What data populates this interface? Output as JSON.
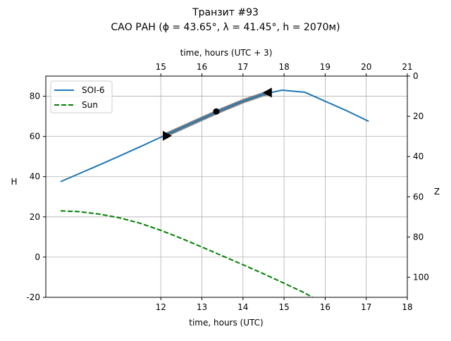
{
  "chart_data": {
    "type": "line",
    "title_line1": "Транзит #93",
    "title_line2": "САО РАН (ϕ = 43.65°, λ = 41.45°, h = 2070м)",
    "xlabel": "time, hours (UTC)",
    "xlabel_top": "time, hours (UTC + 3)",
    "ylabel": "H",
    "ylabel_right": "Z",
    "xlim": [
      9.2,
      18
    ],
    "ylim": [
      -20,
      90
    ],
    "ylim_right": [
      0,
      110
    ],
    "xticks": [
      12,
      13,
      14,
      15,
      16,
      17,
      18
    ],
    "xticks_top": [
      15,
      16,
      17,
      18,
      19,
      20,
      21
    ],
    "yticks": [
      -20,
      0,
      20,
      40,
      60,
      80
    ],
    "yticks_right": [
      0,
      20,
      40,
      60,
      80,
      100
    ],
    "grid": true,
    "legend_position": "top-left",
    "series": [
      {
        "name": "SOI-6",
        "color": "#1f77b4",
        "style": "solid",
        "x": [
          9.56,
          10,
          10.5,
          11,
          11.5,
          12,
          12.5,
          13,
          13.5,
          14,
          14.5,
          14.95,
          15.5,
          16,
          16.5,
          17.06
        ],
        "y": [
          37.5,
          41.4,
          45.8,
          50.3,
          54.9,
          59.6,
          64.2,
          68.8,
          73.3,
          77.5,
          81,
          83,
          82,
          77.5,
          73,
          67.5
        ]
      },
      {
        "name": "Sun",
        "color": "#008000",
        "style": "dashed",
        "x": [
          9.56,
          10,
          10.5,
          11,
          11.5,
          12,
          12.5,
          13,
          13.5,
          14,
          14.5,
          15,
          15.5,
          15.69
        ],
        "y": [
          23,
          22.6,
          21.4,
          19.5,
          16.8,
          13.3,
          9.3,
          5,
          0.6,
          -3.8,
          -8.3,
          -13,
          -17.8,
          -20
        ]
      }
    ],
    "highlight": {
      "x_start": 12.1,
      "x_end": 14.6,
      "color": "#808080"
    },
    "markers": [
      {
        "name": "start",
        "x": 12.15,
        "y": 60.3,
        "shape": "triangle-right"
      },
      {
        "name": "middle",
        "x": 13.35,
        "y": 72.4,
        "shape": "circle"
      },
      {
        "name": "end",
        "x": 14.6,
        "y": 81.8,
        "shape": "triangle-left"
      }
    ]
  }
}
